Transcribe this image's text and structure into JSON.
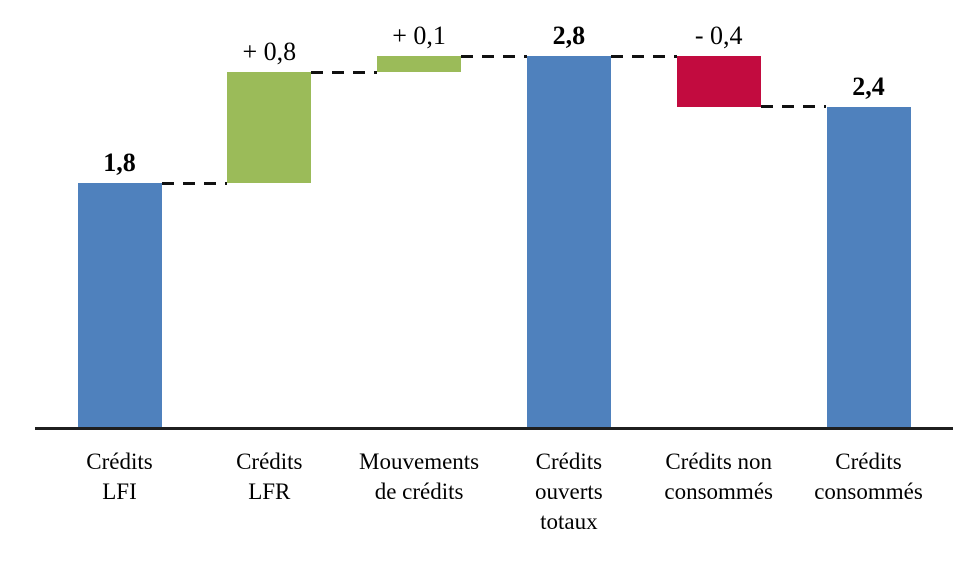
{
  "page": {
    "background": "#ffffff",
    "title": ""
  },
  "chart_data": {
    "type": "bar",
    "subtype": "waterfall",
    "title": "",
    "xlabel": "",
    "ylabel": "",
    "ylim": [
      0,
      3.1
    ],
    "gridlines": false,
    "legend": "none",
    "axis_shown": "x-baseline-only",
    "connector_style": "dashed",
    "colors": {
      "total": "#4F81BD",
      "increase": "#9BBB59",
      "decrease": "#C20B3F",
      "connector": "#111111",
      "axis": "#1F1F1F",
      "text": "#000000"
    },
    "bars": [
      {
        "id": "credits-lfi",
        "category": "Crédits LFI",
        "category_lines": [
          "Crédits",
          "LFI"
        ],
        "value": 1.8,
        "value_label": "1,8",
        "role": "total",
        "start": 0,
        "end": 1.83,
        "label_bold": true
      },
      {
        "id": "credits-lfr",
        "category": "Crédits LFR",
        "category_lines": [
          "Crédits",
          "LFR"
        ],
        "value": 0.8,
        "value_label": "+ 0,8",
        "role": "increase",
        "start": 1.83,
        "end": 2.66,
        "label_bold": false
      },
      {
        "id": "mouvements-de-credits",
        "category": "Mouvements de crédits",
        "category_lines": [
          "Mouvements",
          "de crédits"
        ],
        "value": 0.1,
        "value_label": "+ 0,1",
        "role": "increase",
        "start": 2.66,
        "end": 2.78,
        "label_bold": false
      },
      {
        "id": "credits-ouverts-totaux",
        "category": "Crédits ouverts totaux",
        "category_lines": [
          "Crédits",
          "ouverts",
          "totaux"
        ],
        "value": 2.8,
        "value_label": "2,8",
        "role": "total",
        "start": 0,
        "end": 2.78,
        "label_bold": true
      },
      {
        "id": "credits-non-consommes",
        "category": "Crédits non consommés",
        "category_lines": [
          "Crédits non",
          "consommés"
        ],
        "value": -0.4,
        "value_label": "- 0,4",
        "role": "decrease",
        "start": 2.78,
        "end": 2.4,
        "label_bold": false
      },
      {
        "id": "credits-consommes",
        "category": "Crédits consommés",
        "category_lines": [
          "Crédits",
          "consommés"
        ],
        "value": 2.4,
        "value_label": "2,4",
        "role": "total",
        "start": 0,
        "end": 2.4,
        "label_bold": true
      }
    ]
  }
}
